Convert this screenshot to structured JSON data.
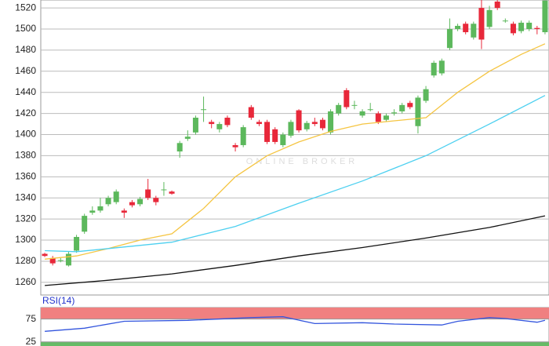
{
  "chart_data": [
    {
      "type": "candlestick",
      "watermark": "ONLINE BROKER",
      "open": [
        1287,
        1283,
        1281,
        1276,
        1290,
        1308,
        1326,
        1328,
        1334,
        1336,
        1328,
        1336,
        1334,
        1348,
        1340,
        1348,
        1346,
        1384,
        1396,
        1402,
        1424,
        1412,
        1405,
        1416,
        1390,
        1390,
        1426,
        1412,
        1412,
        1405,
        1390,
        1399,
        1423,
        1405,
        1412,
        1414,
        1402,
        1420,
        1442,
        1428,
        1418,
        1424,
        1420,
        1414,
        1420,
        1422,
        1430,
        1408,
        1432,
        1456,
        1458,
        1482,
        1500,
        1505,
        1492,
        1520,
        1502,
        1526,
        1508,
        1505,
        1498,
        1500,
        1501,
        1497
      ],
      "high": [
        1288,
        1285,
        1283,
        1289,
        1305,
        1325,
        1332,
        1340,
        1342,
        1348,
        1330,
        1338,
        1341,
        1358,
        1342,
        1355,
        1347,
        1394,
        1404,
        1418,
        1436,
        1414,
        1412,
        1418,
        1392,
        1409,
        1428,
        1414,
        1414,
        1407,
        1402,
        1414,
        1424,
        1413,
        1416,
        1416,
        1424,
        1430,
        1444,
        1432,
        1424,
        1430,
        1422,
        1420,
        1424,
        1430,
        1432,
        1437,
        1446,
        1470,
        1472,
        1510,
        1505,
        1507,
        1507,
        1530,
        1522,
        1528,
        1510,
        1507,
        1508,
        1508,
        1503,
        1527
      ],
      "low": [
        1284,
        1276,
        1279,
        1275,
        1288,
        1306,
        1324,
        1326,
        1332,
        1334,
        1321,
        1331,
        1332,
        1338,
        1333,
        1342,
        1343,
        1378,
        1394,
        1400,
        1412,
        1406,
        1402,
        1407,
        1384,
        1388,
        1414,
        1408,
        1391,
        1391,
        1388,
        1397,
        1402,
        1403,
        1408,
        1404,
        1400,
        1418,
        1424,
        1424,
        1416,
        1422,
        1410,
        1412,
        1418,
        1420,
        1424,
        1401,
        1430,
        1454,
        1456,
        1480,
        1498,
        1495,
        1490,
        1481,
        1500,
        1518,
        1506,
        1494,
        1496,
        1498,
        1495,
        1495
      ],
      "close": [
        1285,
        1278,
        1281,
        1287,
        1303,
        1323,
        1328,
        1332,
        1340,
        1346,
        1326,
        1333,
        1339,
        1340,
        1336,
        1348,
        1344,
        1392,
        1398,
        1416,
        1424,
        1410,
        1410,
        1409,
        1388,
        1407,
        1416,
        1410,
        1393,
        1393,
        1400,
        1412,
        1404,
        1411,
        1410,
        1406,
        1422,
        1428,
        1426,
        1428,
        1422,
        1424,
        1412,
        1418,
        1421,
        1428,
        1426,
        1435,
        1443,
        1468,
        1470,
        1500,
        1503,
        1497,
        1505,
        1490,
        1518,
        1520,
        1508,
        1496,
        1506,
        1506,
        1500,
        1527
      ],
      "up_color": "#5cb85c",
      "down_color": "#e8283a",
      "series": [
        {
          "color": "#f5c542",
          "x": [
            0,
            4,
            8,
            12,
            16,
            20,
            24,
            28,
            32,
            36,
            40,
            44,
            48,
            52,
            56,
            60,
            63
          ],
          "values": [
            1282,
            1285,
            1292,
            1300,
            1306,
            1330,
            1360,
            1380,
            1393,
            1403,
            1410,
            1413,
            1416,
            1440,
            1460,
            1476,
            1486
          ]
        },
        {
          "color": "#4dd0f0",
          "x": [
            0,
            4,
            8,
            16,
            24,
            32,
            40,
            48,
            56,
            63
          ],
          "values": [
            1290,
            1289,
            1292,
            1298,
            1313,
            1335,
            1356,
            1380,
            1410,
            1437
          ]
        },
        {
          "color": "#111111",
          "x": [
            0,
            8,
            16,
            24,
            32,
            40,
            48,
            56,
            63
          ],
          "values": [
            1257,
            1262,
            1268,
            1276,
            1285,
            1293,
            1302,
            1312,
            1323
          ]
        }
      ],
      "ylim": [
        1248,
        1527.5
      ],
      "yticks": [
        1260,
        1280,
        1300,
        1320,
        1340,
        1360,
        1380,
        1400,
        1420,
        1440,
        1460,
        1480,
        1500,
        1520
      ],
      "grid": true
    },
    {
      "type": "line",
      "title": "RSI(14)",
      "color": "#3355dd",
      "x": [
        0,
        5,
        10,
        18,
        26,
        30,
        34,
        40,
        44,
        50,
        52,
        56,
        58,
        62,
        63
      ],
      "values": [
        48,
        55,
        70,
        72,
        78,
        80,
        65,
        67,
        64,
        62,
        70,
        78,
        76,
        68,
        72
      ],
      "ylim": [
        16,
        100
      ],
      "yticks": [
        25,
        75
      ],
      "bands": [
        {
          "from": 75,
          "to": 100,
          "color": "#f08080"
        },
        {
          "from": 16,
          "to": 25,
          "color": "#66bb66"
        }
      ]
    }
  ]
}
